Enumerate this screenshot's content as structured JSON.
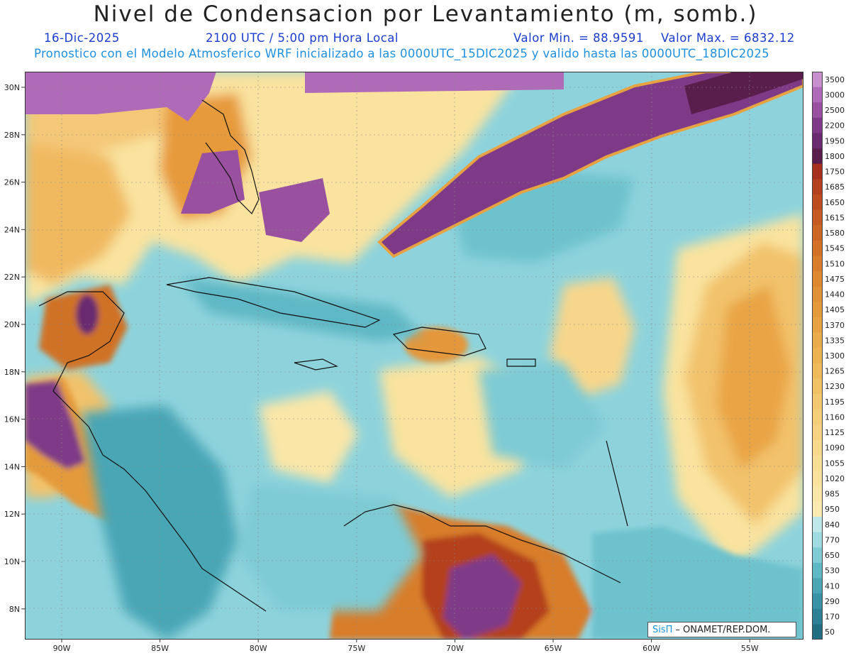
{
  "header": {
    "title": "Nivel de Condensacion por Levantamiento (m, somb.)",
    "date": "16-Dic-2025",
    "time": "2100 UTC / 5:00 pm Hora Local",
    "min_label": "Valor Min. = 88.9591",
    "max_label": "Valor Max. = 6832.12",
    "info": "Pronostico con el Modelo Atmosferico WRF inicializado a las 0000UTC_15DIC2025 y valido hasta las  0000UTC_18DIC2025"
  },
  "map": {
    "lat_labels": [
      "30N",
      "28N",
      "26N",
      "24N",
      "22N",
      "20N",
      "18N",
      "16N",
      "14N",
      "12N",
      "10N",
      "8N"
    ],
    "lon_labels": [
      "90W",
      "85W",
      "80W",
      "75W",
      "70W",
      "65W",
      "60W",
      "55W"
    ]
  },
  "colorbar": {
    "levels": [
      "3500",
      "3000",
      "2500",
      "2200",
      "1950",
      "1800",
      "1750",
      "1685",
      "1650",
      "1615",
      "1580",
      "1545",
      "1510",
      "1475",
      "1440",
      "1405",
      "1370",
      "1335",
      "1300",
      "1265",
      "1230",
      "1195",
      "1160",
      "1125",
      "1090",
      "1055",
      "1020",
      "985",
      "950",
      "840",
      "770",
      "650",
      "530",
      "410",
      "290",
      "170",
      "50"
    ],
    "colors": [
      "#c88fcf",
      "#b06bb8",
      "#98509f",
      "#7f3a87",
      "#692a6f",
      "#5a1e4d",
      "#a8301e",
      "#b4401f",
      "#bd4c20",
      "#c55a22",
      "#cc6624",
      "#d37227",
      "#d87d2b",
      "#dd8730",
      "#e19135",
      "#e49a3b",
      "#e7a342",
      "#eaab4a",
      "#edb353",
      "#efba5c",
      "#f1c166",
      "#f3c870",
      "#f5ce7a",
      "#f6d383",
      "#f7d88c",
      "#f8dd95",
      "#f9e19e",
      "#fae6a7",
      "#fbeab0",
      "#bfe7ea",
      "#9fdbe1",
      "#7ecbd4",
      "#5fb8c5",
      "#4aa6b5",
      "#3a93a4",
      "#2e8194",
      "#226f84"
    ]
  },
  "credit": {
    "brand": "SisΠ",
    "text": "– ONAMET/REP.DOM."
  }
}
